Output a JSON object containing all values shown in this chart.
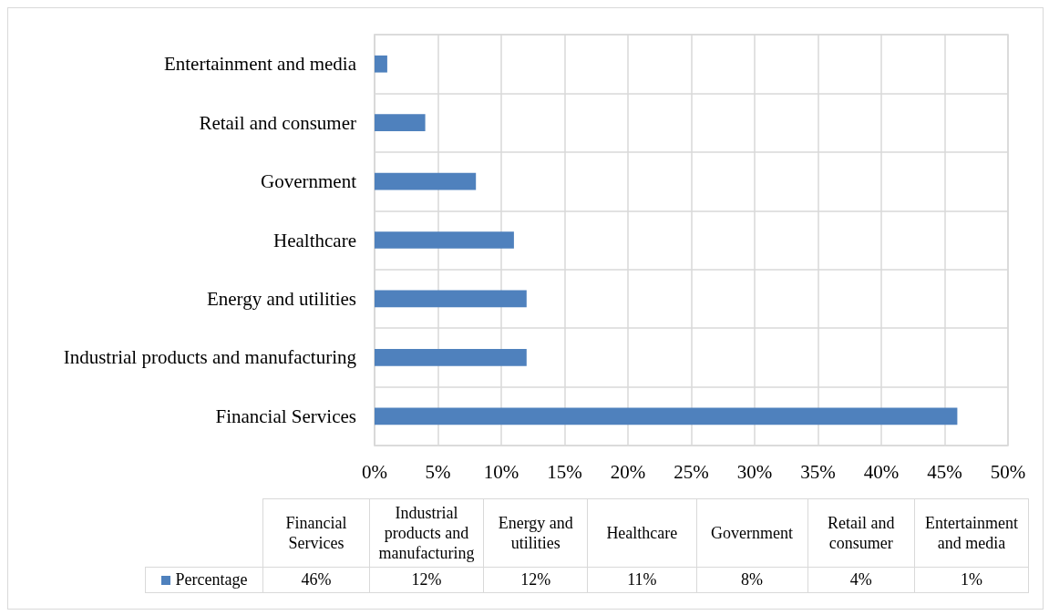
{
  "chart_data": {
    "type": "bar",
    "orientation": "horizontal",
    "categories": [
      "Entertainment and media",
      "Retail and consumer",
      "Government",
      "Healthcare",
      "Energy and utilities",
      "Industrial products and manufacturing",
      "Financial Services"
    ],
    "series": [
      {
        "name": "Percentage",
        "color": "#4f81bd",
        "values": [
          1,
          4,
          8,
          11,
          12,
          12,
          46
        ]
      }
    ],
    "xlim": [
      0,
      50
    ],
    "xticks": [
      {
        "value": 0,
        "label": "0%"
      },
      {
        "value": 5,
        "label": "5%"
      },
      {
        "value": 10,
        "label": "10%"
      },
      {
        "value": 15,
        "label": "15%"
      },
      {
        "value": 20,
        "label": "20%"
      },
      {
        "value": 25,
        "label": "25%"
      },
      {
        "value": 30,
        "label": "30%"
      },
      {
        "value": 35,
        "label": "35%"
      },
      {
        "value": 40,
        "label": "40%"
      },
      {
        "value": 45,
        "label": "45%"
      },
      {
        "value": 50,
        "label": "50%"
      }
    ],
    "value_labels": [
      "1%",
      "4%",
      "8%",
      "11%",
      "12%",
      "12%",
      "46%"
    ],
    "grid": true,
    "legend": "bottom"
  }
}
